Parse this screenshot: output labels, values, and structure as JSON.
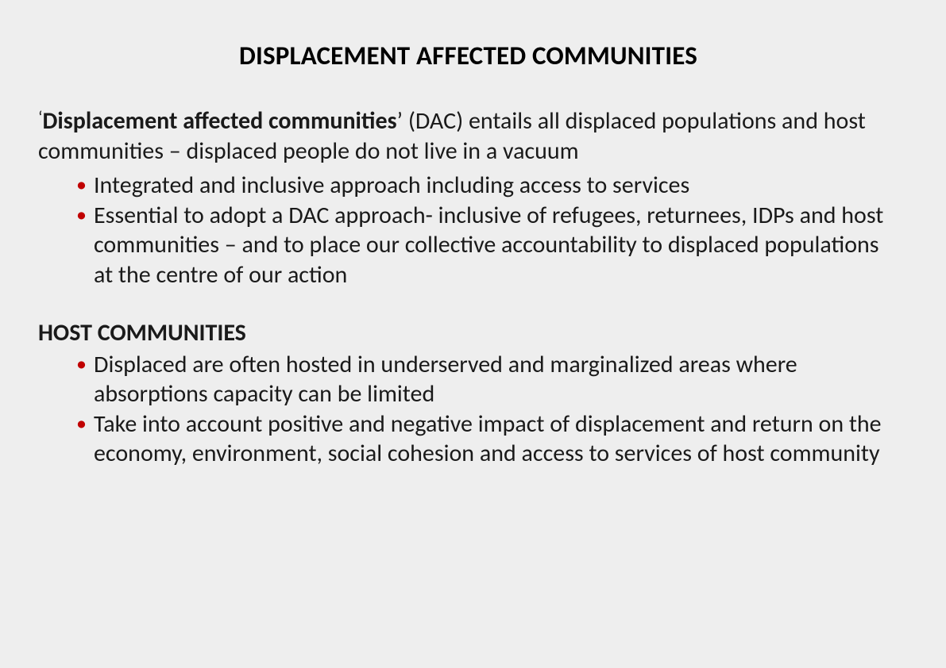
{
  "colors": {
    "background": "#eeeeee",
    "text": "#000000",
    "bullet": "#c00000"
  },
  "typography": {
    "title_fontsize": 33,
    "title_weight": "700",
    "body_fontsize": 30,
    "body_lineheight": 1.25,
    "font_family": "Calibri / Segoe UI / Arial"
  },
  "title": "DISPLACEMENT AFFECTED COMMUNITIES",
  "intro": {
    "open_quote": "‘",
    "lead_bold": "Displacement affected communities",
    "lead_rest": "’ (DAC) entails all displaced populations and host communities – displaced people do not live in a vacuum",
    "bullets": [
      "Integrated and inclusive approach including access to services",
      "Essential to adopt a DAC approach- inclusive of refugees, returnees, IDPs and host communities – and to place our collective accountability to displaced populations at the centre of our action"
    ]
  },
  "section2": {
    "heading": "HOST COMMUNITIES",
    "bullets": [
      "Displaced are often hosted in underserved and marginalized areas where absorptions capacity can be limited",
      " Take into account positive and negative impact of displacement and return on the economy, environment, social cohesion and access to services of host community"
    ]
  }
}
